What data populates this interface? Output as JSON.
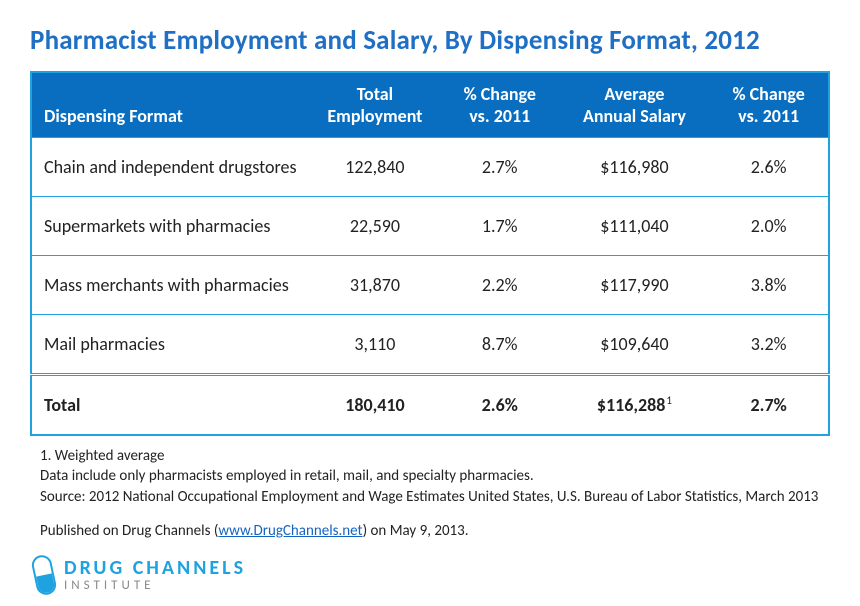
{
  "title": "Pharmacist Employment and Salary, By Dispensing Format, 2012",
  "table": {
    "columns": [
      {
        "line1": "",
        "line2": "Dispensing Format",
        "align": "left"
      },
      {
        "line1": "Total",
        "line2": "Employment",
        "align": "center"
      },
      {
        "line1": "% Change",
        "line2": "vs. 2011",
        "align": "center"
      },
      {
        "line1": "Average",
        "line2": "Annual Salary",
        "align": "center"
      },
      {
        "line1": "% Change",
        "line2": "vs. 2011",
        "align": "center"
      }
    ],
    "rows": [
      {
        "format": "Chain and independent drugstores",
        "employment": "122,840",
        "pct_emp": "2.7%",
        "salary": "$116,980",
        "pct_sal": "2.6%"
      },
      {
        "format": "Supermarkets with pharmacies",
        "employment": "22,590",
        "pct_emp": "1.7%",
        "salary": "$111,040",
        "pct_sal": "2.0%"
      },
      {
        "format": "Mass merchants with pharmacies",
        "employment": "31,870",
        "pct_emp": "2.2%",
        "salary": "$117,990",
        "pct_sal": "3.8%"
      },
      {
        "format": "Mail pharmacies",
        "employment": "3,110",
        "pct_emp": "8.7%",
        "salary": "$109,640",
        "pct_sal": "3.2%"
      }
    ],
    "total": {
      "format": "Total",
      "employment": "180,410",
      "pct_emp": "2.6%",
      "salary": "$116,288",
      "salary_sup": "1",
      "pct_sal": "2.7%"
    }
  },
  "footnotes": {
    "note1": "1. Weighted average",
    "note2": "Data include only pharmacists employed in retail, mail, and specialty pharmacies.",
    "source": "Source: 2012 National Occupational Employment and Wage Estimates United States, U.S. Bureau of Labor Statistics, March 2013",
    "published_pre": "Published on Drug Channels (",
    "published_link": "www.DrugChannels.net",
    "published_post": ") on May 9, 2013."
  },
  "brand": {
    "main": "DRUG CHANNELS",
    "sub": "INSTITUTE"
  },
  "colors": {
    "title": "#1f6fc4",
    "header_bg": "#0a6ec0",
    "border": "#1ea3e0",
    "link": "#1565c0",
    "text": "#222222",
    "background": "#ffffff"
  }
}
